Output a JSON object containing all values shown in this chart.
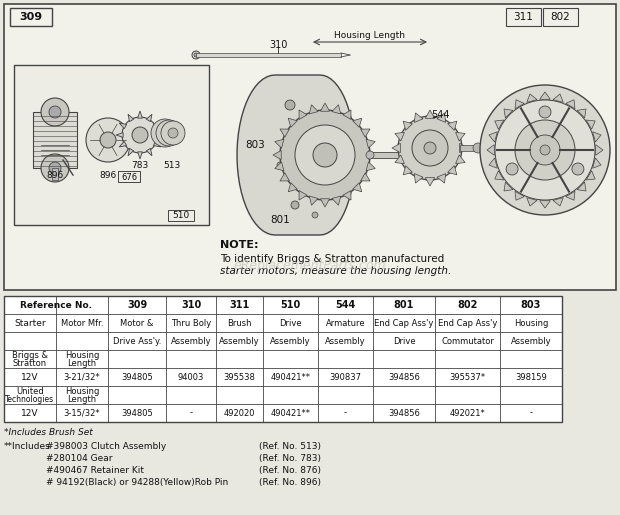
{
  "bg_color": "#e8e8e0",
  "diagram_bg": "#f0f0e8",
  "border_color": "#444444",
  "text_color": "#111111",
  "watermark": "eReplacementParts.com",
  "ref_numbers": [
    "309",
    "310",
    "311",
    "510",
    "544",
    "801",
    "802",
    "803"
  ],
  "col_headers_line1": [
    "Motor &",
    "Thru Boly",
    "Brush",
    "Drive",
    "Armature",
    "End Cap Ass'y",
    "End Cap Ass'y",
    "Housing"
  ],
  "col_headers_line2": [
    "Drive Ass'y.",
    "Assembly",
    "Assembly",
    "Assembly",
    "Assembly",
    "Drive",
    "Commutator",
    "Assembly"
  ],
  "table_data": [
    [
      "",
      "",
      "",
      "",
      "",
      "",
      "",
      ""
    ],
    [
      "394805",
      "94003",
      "395538",
      "490421**",
      "390837",
      "394856",
      "395537*",
      "398159"
    ],
    [
      "",
      "",
      "",
      "",
      "",
      "",
      "",
      ""
    ],
    [
      "394805",
      "-",
      "492020",
      "490421**",
      "-",
      "394856",
      "492021*",
      "-"
    ]
  ],
  "footnote1": "*Includes Brush Set",
  "footnote2_label": "**Includes",
  "footnote2_items": [
    [
      "#398003 Clutch Assembly",
      "(Ref. No. 513)"
    ],
    [
      "#280104 Gear",
      "(Ref. No. 783)"
    ],
    [
      "#490467 Retainer Kit",
      "(Ref. No. 876)"
    ],
    [
      "# 94192(Black) or 94288(Yellow)Rob Pin",
      "(Ref. No. 896)"
    ]
  ]
}
